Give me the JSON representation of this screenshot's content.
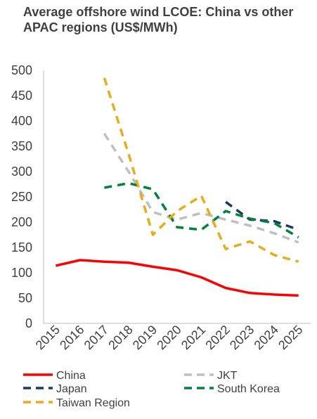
{
  "chart_data": {
    "type": "line",
    "title": "Average offshore wind LCOE: China vs other APAC regions (US$/MWh)",
    "xlabel": "",
    "ylabel": "",
    "x": [
      "2015",
      "2016",
      "2017",
      "2018",
      "2019",
      "2020",
      "2021",
      "2022",
      "2023",
      "2024",
      "2025"
    ],
    "ylim": [
      0,
      500
    ],
    "yticks": [
      0,
      50,
      100,
      150,
      200,
      250,
      300,
      350,
      400,
      450,
      500
    ],
    "grid": false,
    "legend_position": "bottom",
    "series": [
      {
        "name": "China",
        "color": "#ff0000",
        "dash": "solid",
        "values": [
          114,
          125,
          122,
          120,
          112,
          105,
          91,
          70,
          60,
          57,
          55
        ]
      },
      {
        "name": "JKT",
        "color": "#bfbfbf",
        "dash": "dashed",
        "values": [
          null,
          null,
          375,
          300,
          220,
          205,
          218,
          205,
          193,
          178,
          160
        ]
      },
      {
        "name": "Japan",
        "color": "#1f3864",
        "dash": "dashed",
        "values": [
          null,
          null,
          null,
          null,
          null,
          null,
          null,
          240,
          205,
          202,
          185
        ]
      },
      {
        "name": "South Korea",
        "color": "#00843d",
        "dash": "dashed",
        "values": [
          null,
          null,
          268,
          277,
          265,
          190,
          185,
          222,
          207,
          198,
          170
        ]
      },
      {
        "name": "Taiwan Region",
        "color": "#e6ac1e",
        "dash": "dashed",
        "values": [
          null,
          null,
          485,
          335,
          175,
          222,
          252,
          147,
          162,
          135,
          122
        ]
      }
    ]
  }
}
